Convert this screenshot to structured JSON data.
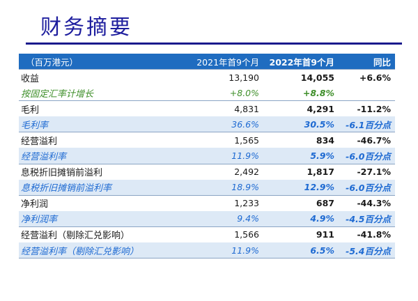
{
  "title": "财务摘要",
  "table": {
    "header": {
      "unit": "（百万港元）",
      "col_2021": "2021年首9个月",
      "col_2022": "2022年首9个月",
      "col_yoy": "同比"
    },
    "rows": [
      {
        "label": "收益",
        "v2021": "13,190",
        "v2022": "14,055",
        "yoy": "+6.6%",
        "style": "main"
      },
      {
        "label": "按固定汇率计增长",
        "v2021": "+8.0%",
        "v2022": "+8.8%",
        "yoy": "",
        "style": "sub-green"
      },
      {
        "label": "毛利",
        "v2021": "4,831",
        "v2022": "4,291",
        "yoy": "-11.2%",
        "style": "main"
      },
      {
        "label": "毛利率",
        "v2021": "36.6%",
        "v2022": "30.5%",
        "yoy": "-6.1百分点",
        "style": "sub"
      },
      {
        "label": "经营溢利",
        "v2021": "1,565",
        "v2022": "834",
        "yoy": "-46.7%",
        "style": "main"
      },
      {
        "label": "经营溢利率",
        "v2021": "11.9%",
        "v2022": "5.9%",
        "yoy": "-6.0百分点",
        "style": "sub"
      },
      {
        "label": "息税折旧摊销前溢利",
        "v2021": "2,492",
        "v2022": "1,817",
        "yoy": "-27.1%",
        "style": "main"
      },
      {
        "label": "息税折旧摊销前溢利率",
        "v2021": "18.9%",
        "v2022": "12.9%",
        "yoy": "-6.0百分点",
        "style": "sub"
      },
      {
        "label": "净利润",
        "v2021": "1,233",
        "v2022": "687",
        "yoy": "-44.3%",
        "style": "main"
      },
      {
        "label": "净利润率",
        "v2021": "9.4%",
        "v2022": "4.9%",
        "yoy": "-4.5百分点",
        "style": "sub"
      },
      {
        "label": "经营溢利（剔除汇兑影响）",
        "v2021": "1,566",
        "v2022": "911",
        "yoy": "-41.8%",
        "style": "main"
      },
      {
        "label": "经营溢利率（剔除汇兑影响）",
        "v2021": "11.9%",
        "v2022": "6.5%",
        "yoy": "-5.4百分点",
        "style": "sub"
      }
    ]
  },
  "colors": {
    "title": "#1e1e9e",
    "header_bg": "#1f6cc0",
    "sub_row_bg": "#dde9f6",
    "sub_text": "#1e6ad2",
    "growth_text": "#3f8f2a"
  }
}
